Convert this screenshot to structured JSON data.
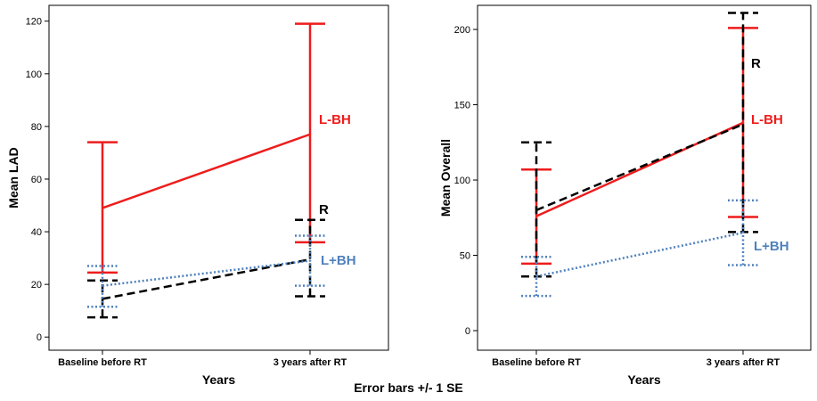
{
  "caption": "Error bars +/- 1 SE",
  "chart_data": [
    {
      "type": "line",
      "ylabel": "Mean LAD",
      "xlabel": "Years",
      "categories": [
        "Baseline before RT",
        "3 years after RT"
      ],
      "ylim": [
        -5,
        126
      ],
      "yticks": [
        0,
        20,
        40,
        60,
        80,
        100,
        120
      ],
      "grid": false,
      "series": [
        {
          "name": "L-BH",
          "color": "#ee1c1c",
          "dash": "solid",
          "values": [
            49,
            77
          ],
          "error_low": [
            24.5,
            36
          ],
          "error_high": [
            74,
            119
          ]
        },
        {
          "name": "R",
          "color": "#000000",
          "dash": "dashed",
          "values": [
            14.5,
            29.5
          ],
          "error_low": [
            7.5,
            15.5
          ],
          "error_high": [
            21.5,
            44.5
          ]
        },
        {
          "name": "L+BH",
          "color": "#4f81bd",
          "dash": "dotted",
          "values": [
            19.5,
            29
          ],
          "error_low": [
            11.5,
            19.5
          ],
          "error_high": [
            27,
            38.5
          ]
        }
      ]
    },
    {
      "type": "line",
      "ylabel": "Mean Overall",
      "xlabel": "Years",
      "categories": [
        "Baseline before RT",
        "3 years after RT"
      ],
      "ylim": [
        -13,
        216
      ],
      "yticks": [
        0,
        50,
        100,
        150,
        200
      ],
      "grid": false,
      "series": [
        {
          "name": "L-BH",
          "color": "#ee1c1c",
          "dash": "solid",
          "values": [
            76,
            138
          ],
          "error_low": [
            44.5,
            75.5
          ],
          "error_high": [
            107,
            201
          ]
        },
        {
          "name": "R",
          "color": "#000000",
          "dash": "dashed",
          "values": [
            80,
            137
          ],
          "error_low": [
            36,
            65.5
          ],
          "error_high": [
            125,
            211
          ]
        },
        {
          "name": "L+BH",
          "color": "#4f81bd",
          "dash": "dotted",
          "values": [
            36,
            65
          ],
          "error_low": [
            23,
            43.5
          ],
          "error_high": [
            49,
            86.5
          ]
        }
      ]
    }
  ]
}
